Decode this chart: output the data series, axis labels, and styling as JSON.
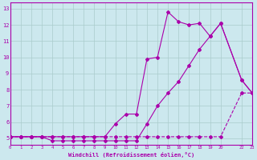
{
  "xlabel": "Windchill (Refroidissement éolien,°C)",
  "background_color": "#cce8ee",
  "line_color": "#aa00aa",
  "grid_color": "#aacccc",
  "series1_x": [
    0,
    1,
    2,
    3,
    4,
    5,
    6,
    7,
    8,
    9,
    10,
    11,
    12,
    13,
    14,
    15,
    16,
    17,
    18,
    19,
    20,
    22,
    23
  ],
  "series1_y": [
    5.1,
    5.1,
    5.1,
    5.1,
    5.1,
    5.1,
    5.1,
    5.1,
    5.1,
    5.1,
    5.1,
    5.1,
    5.1,
    5.1,
    5.1,
    5.1,
    5.1,
    5.1,
    5.1,
    5.1,
    5.1,
    7.8,
    7.8
  ],
  "series2_x": [
    0,
    1,
    2,
    3,
    4,
    5,
    6,
    7,
    8,
    9,
    10,
    11,
    12,
    13,
    14,
    15,
    16,
    17,
    18,
    19,
    20,
    22,
    23
  ],
  "series2_y": [
    5.1,
    5.1,
    5.1,
    5.1,
    5.1,
    5.1,
    5.1,
    5.1,
    5.1,
    5.1,
    5.9,
    6.5,
    6.5,
    9.9,
    10.0,
    12.8,
    12.2,
    12.0,
    12.1,
    11.3,
    12.1,
    8.6,
    7.8
  ],
  "series3_x": [
    0,
    1,
    2,
    3,
    4,
    5,
    6,
    7,
    8,
    9,
    10,
    11,
    12,
    13,
    14,
    15,
    16,
    17,
    18,
    19,
    20,
    22,
    23
  ],
  "series3_y": [
    5.1,
    5.1,
    5.1,
    5.1,
    4.85,
    4.85,
    4.85,
    4.85,
    4.85,
    4.85,
    4.85,
    4.85,
    4.85,
    5.9,
    7.0,
    7.8,
    8.5,
    9.5,
    10.5,
    11.3,
    12.1,
    8.6,
    7.8
  ],
  "xlim": [
    0,
    23
  ],
  "ylim": [
    4.6,
    13.4
  ],
  "xticks": [
    0,
    1,
    2,
    3,
    4,
    5,
    6,
    7,
    8,
    9,
    10,
    11,
    12,
    13,
    14,
    15,
    16,
    17,
    18,
    19,
    20,
    22,
    23
  ],
  "xtick_labels": [
    "0",
    "1",
    "2",
    "3",
    "4",
    "5",
    "6",
    "7",
    "8",
    "9",
    "10",
    "11",
    "12",
    "13",
    "14",
    "15",
    "16",
    "17",
    "18",
    "19",
    "20",
    "22",
    "23"
  ],
  "yticks": [
    5,
    6,
    7,
    8,
    9,
    10,
    11,
    12,
    13
  ]
}
